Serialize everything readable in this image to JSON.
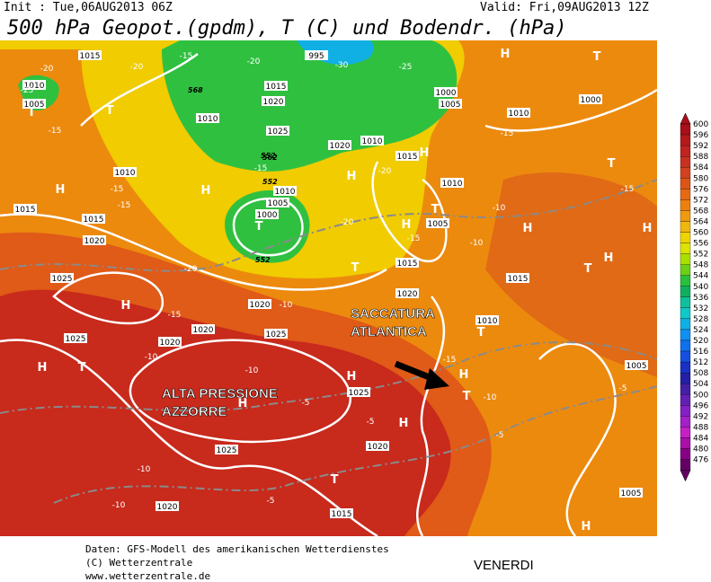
{
  "header": {
    "init": "Init : Tue,06AUG2013 06Z",
    "valid": "Valid: Fri,09AUG2013 12Z",
    "title": "500 hPa Geopot.(gpdm), T (C) und Bodendr. (hPa)"
  },
  "map": {
    "isobar_labels": [
      1015,
      1010,
      1005,
      1010,
      1015,
      1015,
      1020,
      1025,
      1025,
      1020,
      1020,
      1025,
      1025,
      1020,
      1025,
      1020,
      1015,
      1015,
      1020,
      1010,
      1005,
      1005,
      1010,
      1005,
      1010,
      1015,
      1020,
      1025,
      1020,
      1010,
      1005,
      1000,
      1010,
      1015,
      1010,
      1000,
      1000,
      1005,
      995,
      1015,
      1020
    ],
    "temperature_labels": [
      -20,
      -25,
      -15,
      -20,
      -15,
      -20,
      -25,
      -30,
      -15,
      -15,
      -20,
      -15,
      -10,
      -20,
      -20,
      -15,
      -10,
      -15,
      -10,
      -15,
      -10,
      -10,
      -5,
      -5,
      -5,
      -10,
      -10,
      -5,
      -5,
      -15,
      -15,
      -10
    ],
    "pressure_centers": [
      "H",
      "T",
      "T",
      "T",
      "T",
      "H",
      "H",
      "H",
      "T",
      "H",
      "T",
      "H",
      "H",
      "T",
      "H",
      "T",
      "H",
      "H",
      "T",
      "T",
      "H",
      "T",
      "H",
      "H",
      "H",
      "T",
      "H",
      "H"
    ],
    "geopotential_labels": [
      552,
      562,
      568,
      552,
      552
    ],
    "annotations": [
      "SACCATURA",
      "ATLANTICA",
      "ALTA PRESSIONE",
      "AZZORRE"
    ]
  },
  "colorbar": {
    "labels": [
      600,
      596,
      592,
      588,
      584,
      580,
      576,
      572,
      568,
      564,
      560,
      556,
      552,
      548,
      544,
      540,
      536,
      532,
      528,
      524,
      520,
      516,
      512,
      508,
      504,
      500,
      496,
      492,
      488,
      484,
      480,
      476
    ],
    "colors": [
      "#a8101a",
      "#b41a1a",
      "#c02420",
      "#c83220",
      "#d24220",
      "#dc5418",
      "#e66a14",
      "#ee8010",
      "#f09a10",
      "#f0b80c",
      "#f0d400",
      "#dce400",
      "#a8e000",
      "#6cd018",
      "#28c03c",
      "#10b060",
      "#10c09c",
      "#10c8c8",
      "#10b0e4",
      "#1090f0",
      "#1070ee",
      "#1450e0",
      "#1830c4",
      "#2420a4",
      "#4420a4",
      "#6420b4",
      "#8420c4",
      "#a420c8",
      "#c420c4",
      "#a810a8",
      "#860086",
      "#640064"
    ]
  },
  "footer": {
    "lines": [
      "Daten: GFS-Modell des amerikanischen Wetterdienstes",
      "(C) Wetterzentrale",
      "www.wetterzentrale.de"
    ],
    "day": "VENERDI"
  }
}
